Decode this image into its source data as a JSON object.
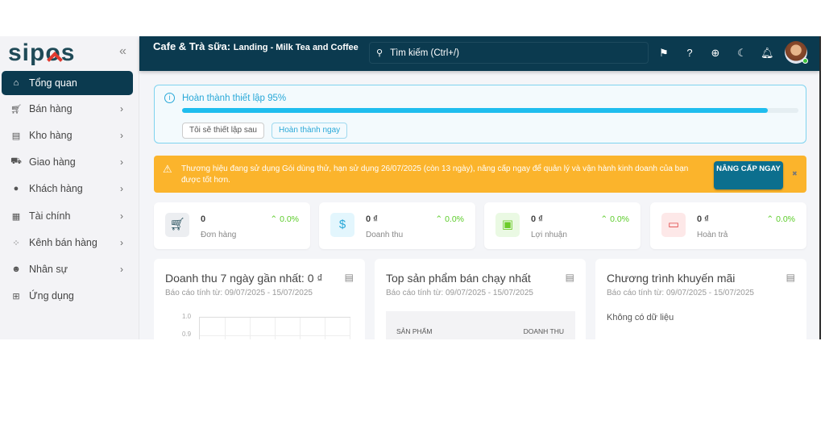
{
  "brand": {
    "logo": "sipos"
  },
  "sidebar": {
    "items": [
      {
        "label": "Tổng quan",
        "icon": "home-icon",
        "active": true
      },
      {
        "label": "Bán hàng",
        "icon": "cart-icon"
      },
      {
        "label": "Kho hàng",
        "icon": "clipboard-icon"
      },
      {
        "label": "Giao hàng",
        "icon": "truck-icon"
      },
      {
        "label": "Khách hàng",
        "icon": "users-icon"
      },
      {
        "label": "Tài chính",
        "icon": "calculator-icon"
      },
      {
        "label": "Kênh bán hàng",
        "icon": "network-icon"
      },
      {
        "label": "Nhân sự",
        "icon": "user-gear-icon"
      },
      {
        "label": "Ứng dụng",
        "icon": "apps-add-icon"
      }
    ]
  },
  "header": {
    "title": "Cafe & Trà sữa:",
    "store": "Landing - Milk Tea and Coffee",
    "search_placeholder": "Tìm kiếm (Ctrl+/)"
  },
  "setup": {
    "title": "Hoàn thành thiết lập 95%",
    "progress": 95,
    "later": "Tôi sẽ thiết lập sau",
    "finish": "Hoàn thành ngay"
  },
  "warning": {
    "text": "Thương hiệu đang sử dụng Gói dùng thử, hạn sử dụng 26/07/2025 (còn 13 ngày), nâng cấp ngay để quản lý và vận hành kinh doanh của bạn được tốt hơn.",
    "button": "NÂNG CẤP NGAY"
  },
  "stats": [
    {
      "value": "0",
      "label": "Đơn hàng",
      "change": "0.0%",
      "color": "#eceef1"
    },
    {
      "value": "0 ₫",
      "label": "Doanh thu",
      "change": "0.0%",
      "color": "#e3f6fd"
    },
    {
      "value": "0 ₫",
      "label": "Lợi nhuận",
      "change": "0.0%",
      "color": "#eaf9e3"
    },
    {
      "value": "0 ₫",
      "label": "Hoàn trả",
      "change": "0.0%",
      "color": "#fde8e8"
    }
  ],
  "cards": {
    "revenue": {
      "title": "Doanh thu 7 ngày gần nhất: 0 ₫",
      "subtitle": "Báo cáo tính từ: 09/07/2025 - 15/07/2025",
      "yticks": [
        "1.0",
        "0.9"
      ]
    },
    "top": {
      "title": "Top sản phẩm bán chạy nhất",
      "subtitle": "Báo cáo tính từ: 09/07/2025 - 15/07/2025",
      "col1": "SẢN PHẨM",
      "col2": "DOANH THU"
    },
    "promo": {
      "title": "Chương trình khuyến mãi",
      "subtitle": "Báo cáo tính từ: 09/07/2025 - 15/07/2025",
      "empty": "Không có dữ liệu"
    }
  }
}
